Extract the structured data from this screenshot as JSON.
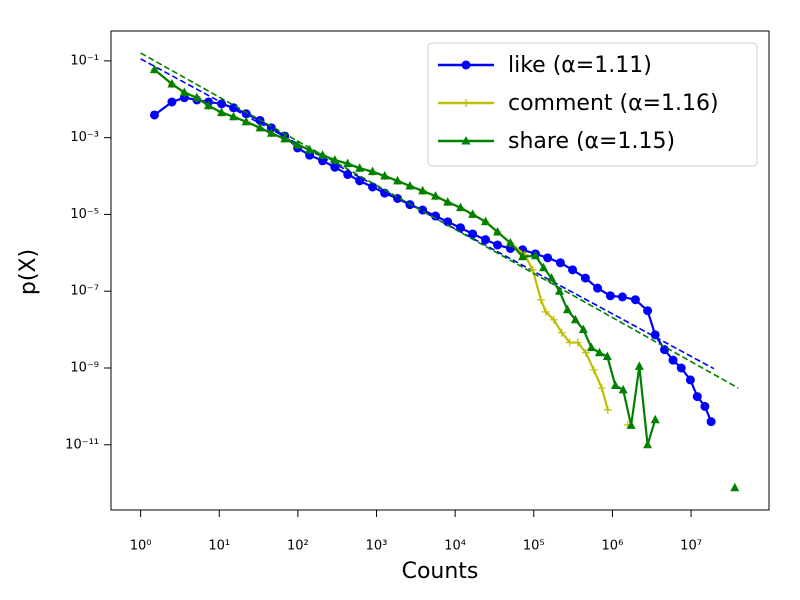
{
  "chart_data": {
    "type": "line",
    "x_label": "Counts",
    "y_label": "p(X)",
    "xlog": true,
    "ylog": true,
    "xlim": [
      0.42,
      98000000.0
    ],
    "ylim": [
      2e-13,
      0.6
    ],
    "xticks": [
      {
        "value": 1,
        "label": "10⁰"
      },
      {
        "value": 10,
        "label": "10¹"
      },
      {
        "value": 100,
        "label": "10²"
      },
      {
        "value": 1000,
        "label": "10³"
      },
      {
        "value": 10000,
        "label": "10⁴"
      },
      {
        "value": 100000,
        "label": "10⁵"
      },
      {
        "value": 1000000,
        "label": "10⁶"
      },
      {
        "value": 10000000,
        "label": "10⁷"
      }
    ],
    "yticks": [
      {
        "value": 0.1,
        "label": "10⁻¹"
      },
      {
        "value": 0.001,
        "label": "10⁻³"
      },
      {
        "value": 1e-05,
        "label": "10⁻⁵"
      },
      {
        "value": 1e-07,
        "label": "10⁻⁷"
      },
      {
        "value": 1e-09,
        "label": "10⁻⁹"
      },
      {
        "value": 1e-11,
        "label": "10⁻¹¹"
      }
    ],
    "legend": "upper right",
    "series": [
      {
        "name": "like (α=1.11)",
        "color": "#0000ff",
        "marker": "circle",
        "x": [
          1.5,
          2.5,
          3.6,
          5.2,
          7.3,
          10.7,
          15.2,
          22,
          33,
          46,
          68,
          99,
          141,
          206,
          295,
          430,
          610,
          890,
          1270,
          1850,
          2660,
          3860,
          5630,
          8040,
          11700,
          16700,
          24300,
          34600,
          50400,
          72000,
          105000,
          150000,
          218000,
          311000,
          453000,
          647000,
          942000,
          1340000,
          1960000,
          2800000,
          3500000,
          4600000,
          5900000,
          7500000,
          9800000,
          12000000,
          15000000,
          18000000
        ],
        "values": [
          0.0039,
          0.0085,
          0.011,
          0.0096,
          0.0085,
          0.0076,
          0.006,
          0.0042,
          0.0028,
          0.0018,
          0.0011,
          0.00054,
          0.00035,
          0.00025,
          0.00017,
          0.00011,
          7.5e-05,
          5.2e-05,
          3.6e-05,
          2.6e-05,
          1.8e-05,
          1.3e-05,
          9.1e-06,
          6.4e-06,
          4.5e-06,
          3.1e-06,
          2.2e-06,
          1.6e-06,
          1.3e-06,
          1.2e-06,
          9.4e-07,
          7.4e-07,
          5.5e-07,
          3.6e-07,
          2.2e-07,
          1.2e-07,
          7.6e-08,
          7.1e-08,
          6e-08,
          3.1e-08,
          7.3e-09,
          3e-09,
          1.6e-09,
          1e-09,
          4.9e-10,
          1.8e-10,
          1e-10,
          4e-11
        ],
        "fit": {
          "x": [
            1,
            19500000
          ],
          "values": [
            0.113,
            9.6e-10
          ]
        }
      },
      {
        "name": "comment (α=1.16)",
        "color": "#bfbf00",
        "marker": "plus",
        "x": [
          1.5,
          2.5,
          3.6,
          5.2,
          7.3,
          10.7,
          15.2,
          22,
          33,
          46,
          68,
          99,
          141,
          206,
          295,
          430,
          610,
          890,
          1270,
          1850,
          2660,
          3860,
          5630,
          8040,
          11700,
          16700,
          24300,
          34600,
          50400,
          76900,
          97000,
          123000,
          142000,
          180000,
          227000,
          287000,
          363000,
          459000,
          580000,
          733000,
          874000,
          1320000,
          1570000
        ],
        "values": [
          0.059,
          0.025,
          0.015,
          0.011,
          0.0068,
          0.0045,
          0.0035,
          0.0026,
          0.0018,
          0.0013,
          0.00093,
          0.00065,
          0.00048,
          0.00035,
          0.00026,
          0.00021,
          0.00016,
          0.00013,
          0.0001,
          7.5e-05,
          5.5e-05,
          4.1e-05,
          3e-05,
          2.1e-05,
          1.5e-05,
          1e-05,
          6.5e-06,
          3.5e-06,
          1.8e-06,
          8.9e-07,
          3.6e-07,
          6e-08,
          2.9e-08,
          1.8e-08,
          8.3e-09,
          4.6e-09,
          4.6e-09,
          2.5e-09,
          8.9e-10,
          3e-10,
          8.1e-11,
          null,
          3.3e-11
        ]
      },
      {
        "name": "share (α=1.15)",
        "color": "#008000",
        "marker": "triangle",
        "x": [
          1.5,
          2.5,
          3.6,
          5.2,
          7.3,
          10.7,
          15.2,
          22,
          33,
          46,
          68,
          99,
          141,
          206,
          295,
          430,
          610,
          890,
          1270,
          1850,
          2660,
          3860,
          5630,
          8040,
          11700,
          16700,
          24300,
          34600,
          50400,
          72000,
          105000,
          133000,
          168000,
          212000,
          268000,
          338000,
          427000,
          540000,
          682000,
          861000,
          1090000,
          1370000,
          1730000,
          2200000,
          2800000,
          3500000,
          20000000,
          36000000
        ],
        "values": [
          0.059,
          0.025,
          0.015,
          0.011,
          0.0068,
          0.0045,
          0.0035,
          0.0026,
          0.0018,
          0.0013,
          0.00093,
          0.00065,
          0.00048,
          0.00035,
          0.00026,
          0.00021,
          0.00016,
          0.00013,
          0.0001,
          7.5e-05,
          5.5e-05,
          4.1e-05,
          3e-05,
          2.1e-05,
          1.5e-05,
          1e-05,
          6.5e-06,
          3.5e-06,
          1.8e-06,
          7.9e-07,
          8.4e-07,
          4.1e-07,
          2.2e-07,
          1e-07,
          3.3e-08,
          1.8e-08,
          1e-08,
          3.4e-09,
          2.5e-09,
          2e-09,
          3.5e-10,
          2.7e-10,
          3.2e-11,
          1.1e-09,
          1e-11,
          4.5e-11,
          null,
          7.6e-13
        ],
        "fit": {
          "x": [
            1,
            39800000
          ],
          "values": [
            0.16,
            3e-10
          ]
        }
      }
    ]
  }
}
